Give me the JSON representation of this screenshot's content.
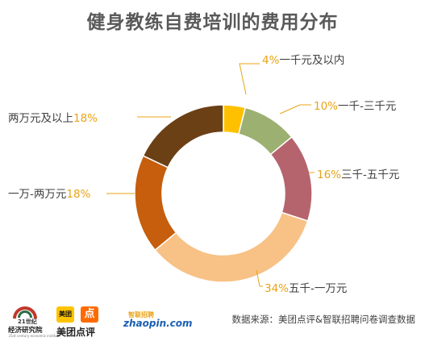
{
  "title": "健身教练自费培训的费用分布",
  "source": "数据来源：美团点评&智联招聘问卷调查数据",
  "logos": {
    "logo_21": {
      "line1": "21世纪",
      "line2": "经济研究院",
      "line3": "21st century economic institute"
    },
    "logo_meituan": {
      "badge": "美团",
      "icon": "点",
      "name": "美团点评"
    },
    "logo_zhaopin": {
      "cn": "智联招聘",
      "en": "zhaopin.com"
    }
  },
  "chart_data": {
    "type": "pie",
    "donut": true,
    "start_angle_deg": 0,
    "direction": "clockwise",
    "legend": "none",
    "labels_position": "outside",
    "slices": [
      {
        "label": "一千元及以内",
        "value": 4,
        "pct_text": "4%",
        "color": "#ffc000"
      },
      {
        "label": "一千-三千元",
        "value": 10,
        "pct_text": "10%",
        "color": "#9cb071"
      },
      {
        "label": "三千-五千元",
        "value": 16,
        "pct_text": "16%",
        "color": "#b5646e"
      },
      {
        "label": "五千-一万元",
        "value": 34,
        "pct_text": "34%",
        "color": "#f8c185"
      },
      {
        "label": "一万-两万元",
        "value": 18,
        "pct_text": "18%",
        "color": "#c65e0d"
      },
      {
        "label": "两万元及以上",
        "value": 18,
        "pct_text": "18%",
        "color": "#6b4015"
      }
    ]
  }
}
